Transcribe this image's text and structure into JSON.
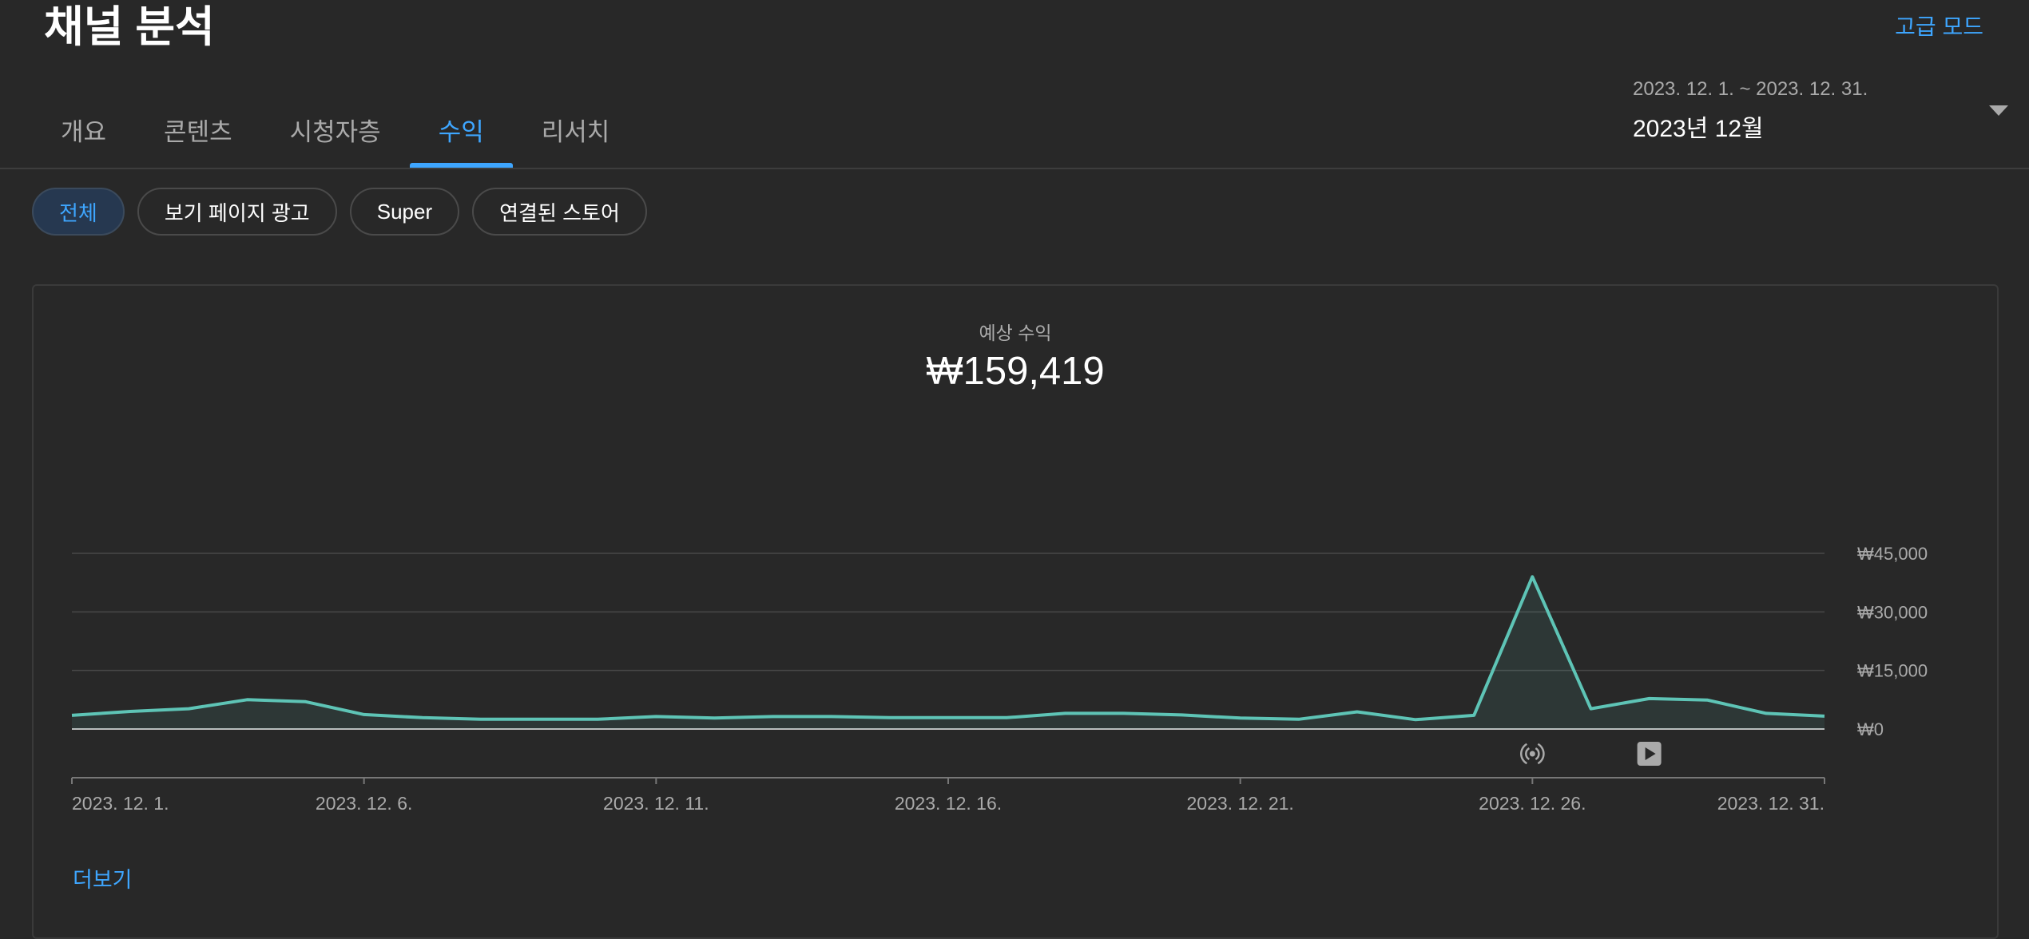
{
  "header": {
    "title": "채널 분석",
    "advanced_mode": "고급 모드"
  },
  "tabs": [
    {
      "label": "개요"
    },
    {
      "label": "콘텐츠"
    },
    {
      "label": "시청자층"
    },
    {
      "label": "수익",
      "active": true
    },
    {
      "label": "리서치"
    }
  ],
  "date_picker": {
    "range": "2023. 12. 1. ~ 2023. 12. 31.",
    "label": "2023년 12월"
  },
  "filter_chips": [
    {
      "label": "전체",
      "active": true
    },
    {
      "label": "보기 페이지 광고"
    },
    {
      "label": "Super"
    },
    {
      "label": "연결된 스토어"
    }
  ],
  "metric": {
    "label": "예상 수익",
    "value": "₩159,419"
  },
  "more_link": "더보기",
  "colors": {
    "background": "#282828",
    "accent": "#3ea6ff",
    "series": "#5ec4b6"
  },
  "chart_data": {
    "type": "area",
    "x": [
      "2023-12-01",
      "2023-12-02",
      "2023-12-03",
      "2023-12-04",
      "2023-12-05",
      "2023-12-06",
      "2023-12-07",
      "2023-12-08",
      "2023-12-09",
      "2023-12-10",
      "2023-12-11",
      "2023-12-12",
      "2023-12-13",
      "2023-12-14",
      "2023-12-15",
      "2023-12-16",
      "2023-12-17",
      "2023-12-18",
      "2023-12-19",
      "2023-12-20",
      "2023-12-21",
      "2023-12-22",
      "2023-12-23",
      "2023-12-24",
      "2023-12-25",
      "2023-12-26",
      "2023-12-27",
      "2023-12-28",
      "2023-12-29",
      "2023-12-30",
      "2023-12-31"
    ],
    "values": [
      3500,
      4500,
      5200,
      7500,
      7000,
      3700,
      2900,
      2500,
      2500,
      2500,
      3200,
      2800,
      3200,
      3200,
      2900,
      2900,
      2900,
      4000,
      4000,
      3600,
      2800,
      2500,
      4400,
      2400,
      3500,
      39000,
      5200,
      7800,
      7400,
      4000,
      3300
    ],
    "x_tick_labels": [
      "2023. 12. 1.",
      "2023. 12. 6.",
      "2023. 12. 11.",
      "2023. 12. 16.",
      "2023. 12. 21.",
      "2023. 12. 26.",
      "2023. 12. 31."
    ],
    "x_tick_index": [
      0,
      5,
      10,
      15,
      20,
      25,
      30
    ],
    "y_ticks": [
      0,
      15000,
      30000,
      45000
    ],
    "y_tick_labels": [
      "₩0",
      "₩15,000",
      "₩30,000",
      "₩45,000"
    ],
    "ylim": [
      0,
      45000
    ],
    "grid": true,
    "markers": [
      {
        "index": 25,
        "icon": "live-stream-icon"
      },
      {
        "index": 27,
        "icon": "video-play-icon"
      }
    ]
  }
}
